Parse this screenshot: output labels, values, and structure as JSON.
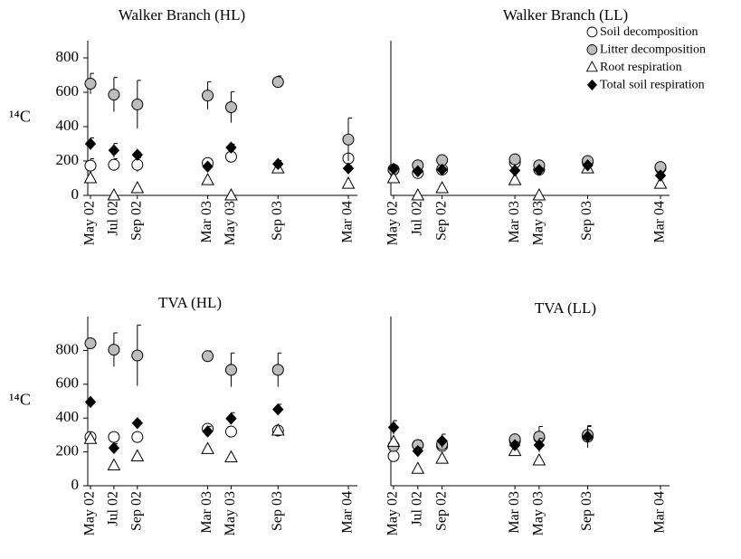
{
  "chart_data": [
    {
      "type": "scatter",
      "title": "Walker Branch (HL)",
      "ylabel": "¹⁴C",
      "x": [
        "May 02",
        "Jul 02",
        "Sep 02",
        "Mar 03",
        "May 03",
        "Sep 03",
        "Mar 04"
      ],
      "ylim": [
        0,
        900
      ],
      "yticks": [
        0,
        200,
        400,
        600,
        800
      ],
      "series": [
        {
          "marker": "circle",
          "color": "#ffffff",
          "values": [
            173,
            178,
            178,
            188,
            225,
            null,
            215
          ],
          "errors": [
            40,
            35,
            40,
            null,
            null,
            null,
            null
          ]
        },
        {
          "marker": "circle",
          "color": "#bdbdbd",
          "values": [
            650,
            586,
            529,
            581,
            513,
            660,
            325
          ],
          "errors": [
            60,
            100,
            140,
            80,
            90,
            35,
            125
          ]
        },
        {
          "marker": "triangle",
          "color": "#ffffff",
          "values": [
            100,
            0,
            42,
            89,
            0,
            157,
            68
          ]
        },
        {
          "marker": "diamond",
          "color": "#000000",
          "values": [
            300,
            262,
            236,
            168,
            278,
            183,
            157
          ],
          "errors": [
            35,
            40,
            15,
            10,
            20,
            20,
            15
          ]
        }
      ]
    },
    {
      "type": "scatter",
      "title": "Walker Branch (LL)",
      "legend": "upper right",
      "x": [
        "May 02",
        "Jul 02",
        "Sep 02",
        "Mar 03",
        "May 03",
        "Sep 03",
        "Mar 04"
      ],
      "ylim": [
        0,
        900
      ],
      "series": [
        {
          "name": "Soil decomposition",
          "marker": "circle",
          "color": "#ffffff",
          "values": [
            150,
            130,
            150,
            190,
            150,
            195,
            160
          ]
        },
        {
          "name": "Litter decomposition",
          "marker": "circle",
          "color": "#bdbdbd",
          "values": [
            150,
            175,
            205,
            210,
            175,
            200,
            165
          ]
        },
        {
          "name": "Root respiration",
          "marker": "triangle",
          "color": "#ffffff",
          "values": [
            100,
            0,
            42,
            89,
            0,
            157,
            68
          ]
        },
        {
          "name": "Total soil respiration",
          "marker": "diamond",
          "color": "#000000",
          "values": [
            155,
            140,
            150,
            145,
            148,
            175,
            115
          ]
        }
      ]
    },
    {
      "type": "scatter",
      "title": "TVA (HL)",
      "ylabel": "¹⁴C",
      "x": [
        "May 02",
        "Jul 02",
        "Sep 02",
        "Mar 03",
        "May 03",
        "Sep 03",
        "Mar 04"
      ],
      "ylim": [
        0,
        1000
      ],
      "yticks": [
        0,
        200,
        400,
        600,
        800
      ],
      "series": [
        {
          "marker": "circle",
          "color": "#ffffff",
          "values": [
            288,
            288,
            288,
            337,
            320,
            326,
            null
          ]
        },
        {
          "marker": "circle",
          "color": "#bdbdbd",
          "values": [
            842,
            804,
            770,
            766,
            685,
            685,
            null
          ],
          "errors": [
            20,
            100,
            180,
            30,
            100,
            100,
            null
          ]
        },
        {
          "marker": "triangle",
          "color": "#ffffff",
          "values": [
            277,
            120,
            174,
            217,
            168,
            326,
            null
          ]
        },
        {
          "marker": "diamond",
          "color": "#000000",
          "values": [
            495,
            223,
            370,
            321,
            397,
            451,
            null
          ],
          "errors": [
            10,
            25,
            15,
            30,
            35,
            30,
            null
          ]
        }
      ]
    },
    {
      "type": "scatter",
      "title": "TVA (LL)",
      "x": [
        "May 02",
        "Jul 02",
        "Sep 02",
        "Mar 03",
        "May 03",
        "Sep 03",
        "Mar 04"
      ],
      "ylim": [
        0,
        1000
      ],
      "series": [
        {
          "marker": "circle",
          "color": "#ffffff",
          "values": [
            175,
            240,
            235,
            265,
            285,
            290,
            null
          ]
        },
        {
          "marker": "circle",
          "color": "#bdbdbd",
          "values": [
            235,
            240,
            245,
            275,
            290,
            300,
            null
          ],
          "errors": [
            30,
            30,
            30,
            20,
            60,
            50,
            null
          ]
        },
        {
          "marker": "triangle",
          "color": "#ffffff",
          "values": [
            260,
            100,
            160,
            205,
            150,
            null,
            null
          ]
        },
        {
          "marker": "diamond",
          "color": "#000000",
          "values": [
            345,
            205,
            265,
            240,
            240,
            290,
            null
          ],
          "errors": [
            40,
            20,
            40,
            20,
            40,
            65,
            null
          ]
        }
      ]
    }
  ]
}
